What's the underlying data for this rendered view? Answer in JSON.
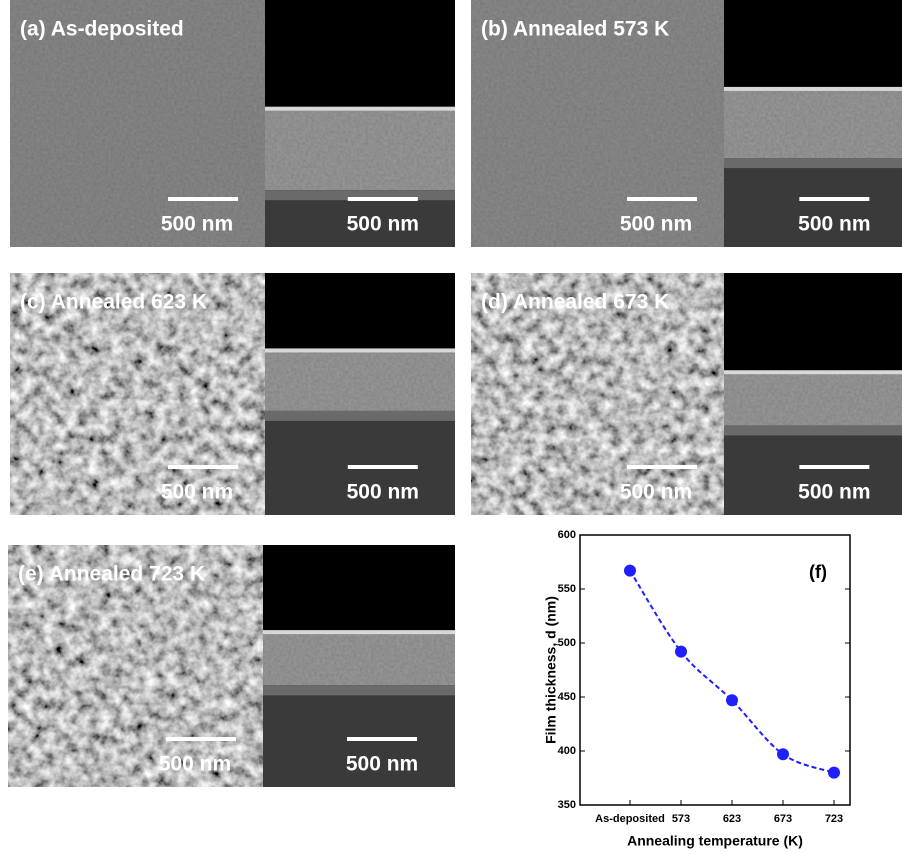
{
  "panels": [
    {
      "label": "(a) As-deposited",
      "scale_left": "500 nm",
      "scale_right": "500 nm"
    },
    {
      "label": "(b) Annealed 573 K",
      "scale_left": "500 nm",
      "scale_right": "500 nm"
    },
    {
      "label": "(c) Annealed 623 K",
      "scale_left": "500 nm",
      "scale_right": "500 nm"
    },
    {
      "label": "(d) Annealed 673 K",
      "scale_left": "500 nm",
      "scale_right": "500 nm"
    },
    {
      "label": "(e) Annealed 723 K",
      "scale_left": "500 nm",
      "scale_right": "500 nm"
    }
  ],
  "chart_data": {
    "type": "scatter",
    "annotation": "(f)",
    "x_label": "Annealing temperature (K)",
    "y_label": "Film thickness, d (nm)",
    "categories": [
      "As-deposited",
      "573",
      "623",
      "673",
      "723"
    ],
    "values": [
      567,
      492,
      447,
      397,
      380
    ],
    "color": "#1f1fff",
    "ylim": [
      350,
      600
    ],
    "yticks": [
      350,
      400,
      450,
      500,
      550,
      600
    ]
  }
}
